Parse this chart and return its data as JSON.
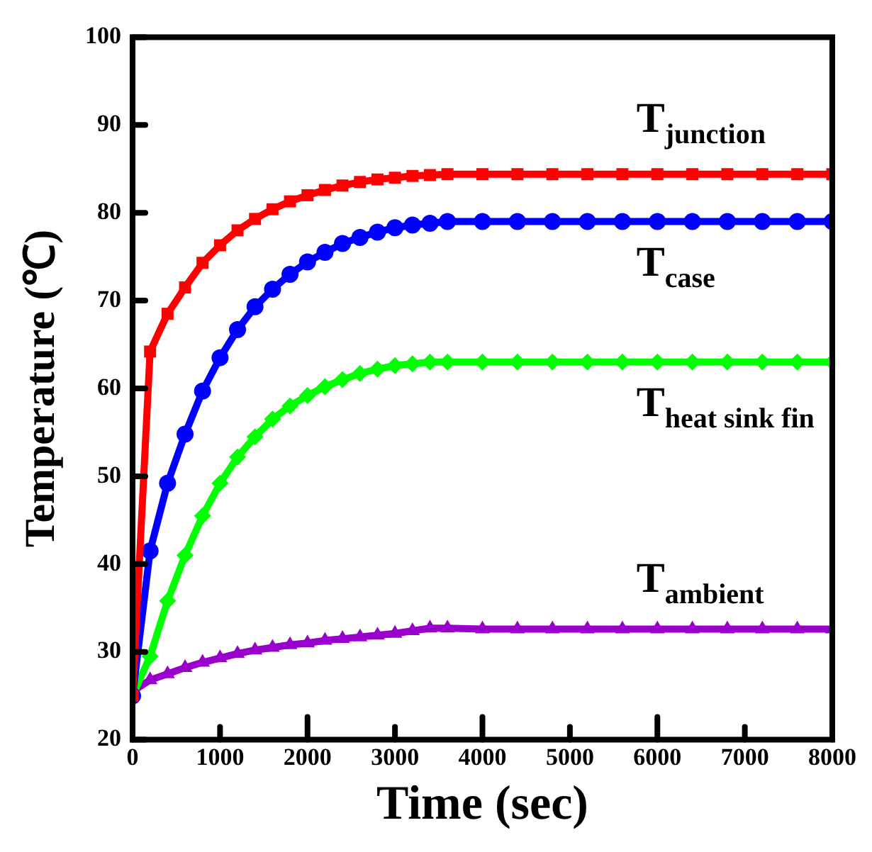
{
  "chart_data": {
    "type": "line",
    "xlabel": "Time (sec)",
    "ylabel": "Temperature (℃)",
    "xlim": [
      0,
      8000
    ],
    "xticks": [
      0,
      1000,
      2000,
      3000,
      4000,
      5000,
      6000,
      7000,
      8000
    ],
    "ylim": [
      20,
      100
    ],
    "yticks": [
      20,
      30,
      40,
      50,
      60,
      70,
      80,
      90,
      100
    ],
    "grid": false,
    "legend": false,
    "line_style": "solid",
    "x": [
      0,
      200,
      400,
      600,
      800,
      1000,
      1200,
      1400,
      1600,
      1800,
      2000,
      2200,
      2400,
      2600,
      2800,
      3000,
      3200,
      3400,
      3600,
      4000,
      4400,
      4800,
      5200,
      5600,
      6000,
      6400,
      6800,
      7200,
      7600,
      8000
    ],
    "series": [
      {
        "name": "T$_{junction}$",
        "color": "#ff0000",
        "marker": "square",
        "values": [
          25,
          64.2,
          68.5,
          71.5,
          74.3,
          76.3,
          78,
          79.3,
          80.4,
          81.3,
          82,
          82.6,
          83.1,
          83.5,
          83.8,
          84,
          84.2,
          84.3,
          84.4,
          84.4,
          84.4,
          84.4,
          84.4,
          84.4,
          84.4,
          84.4,
          84.4,
          84.4,
          84.4,
          84.4
        ]
      },
      {
        "name": "T$_{case}$",
        "color": "#0000ff",
        "marker": "circle",
        "values": [
          25,
          41.5,
          49.2,
          54.8,
          59.7,
          63.5,
          66.7,
          69.3,
          71.3,
          73,
          74.4,
          75.5,
          76.5,
          77.2,
          77.8,
          78.3,
          78.6,
          78.8,
          79,
          79,
          79,
          79,
          79,
          79,
          79,
          79,
          79,
          79,
          79,
          79
        ]
      },
      {
        "name": "T$_{heat sink fin}$",
        "color": "#00ff00",
        "marker": "diamond",
        "values": [
          25,
          29.5,
          35.8,
          41,
          45.5,
          49.2,
          52.2,
          54.5,
          56.5,
          58,
          59.2,
          60.2,
          61,
          61.7,
          62.2,
          62.6,
          62.8,
          63,
          63,
          63,
          63,
          63,
          63,
          63,
          63,
          63,
          63,
          63,
          63,
          63
        ]
      },
      {
        "name": "T$_{ambient}$",
        "color": "#9900cc",
        "marker": "triangle",
        "values": [
          25.5,
          26.8,
          27.5,
          28.2,
          28.8,
          29.3,
          29.8,
          30.2,
          30.5,
          30.8,
          31,
          31.3,
          31.5,
          31.7,
          31.9,
          32.1,
          32.4,
          32.7,
          32.7,
          32.6,
          32.6,
          32.6,
          32.6,
          32.6,
          32.6,
          32.6,
          32.6,
          32.6,
          32.6,
          32.6
        ]
      }
    ]
  }
}
